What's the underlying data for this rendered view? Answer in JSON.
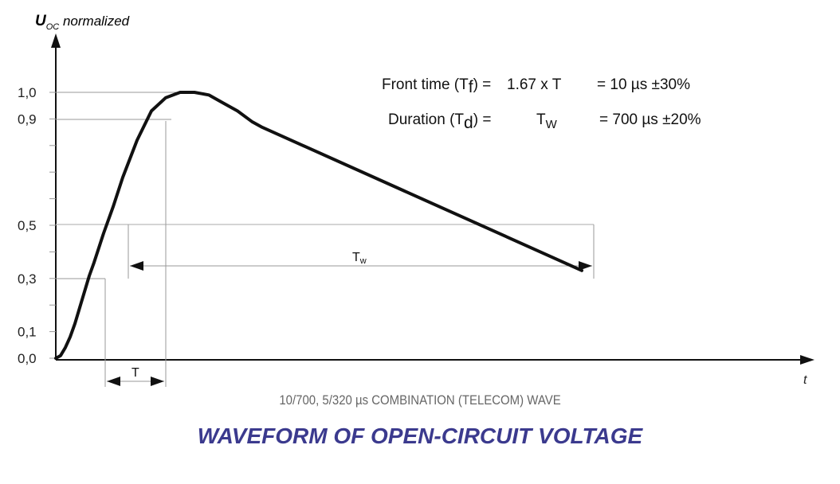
{
  "chart_data": {
    "type": "line",
    "title": "WAVEFORM OF OPEN-CIRCUIT VOLTAGE",
    "subtitle": "10/700, 5/320 µs COMBINATION (TELECOM) WAVE",
    "ylabel_main": "U",
    "ylabel_sub": "OC",
    "ylabel_rest": " normalized",
    "xlabel": "t",
    "y_ticks": [
      "0,0",
      "0,1",
      "0,3",
      "0,5",
      "0,9",
      "1,0"
    ],
    "y_tick_values": [
      0.0,
      0.1,
      0.3,
      0.5,
      0.9,
      1.0
    ],
    "ylim": [
      0,
      1.0
    ],
    "grid": false,
    "series": [
      {
        "x": [
          0,
          2,
          4,
          6,
          8,
          10,
          12,
          14,
          16,
          20,
          24,
          28,
          34,
          40,
          46,
          52,
          58,
          64,
          70,
          76,
          82,
          86
        ],
        "values": [
          0.0,
          0.01,
          0.04,
          0.08,
          0.13,
          0.19,
          0.25,
          0.31,
          0.36,
          0.47,
          0.57,
          0.68,
          0.82,
          0.93,
          0.98,
          1.0,
          1.0,
          0.99,
          0.96,
          0.93,
          0.89,
          0.87
        ]
      }
    ],
    "tail_end": {
      "x": 220,
      "y": 0.33
    },
    "annotations": {
      "front_label": "Front time (T",
      "front_sub": "f",
      "front_rest": ") =",
      "front_eq": "1.67 x T",
      "front_value": "= 10 µs ±30%",
      "duration_label": "Duration (T",
      "duration_sub": "d",
      "duration_rest": ") =",
      "duration_eq_main": "T",
      "duration_eq_sub": "W",
      "duration_value": "= 700 µs ±20%",
      "tw_main": "T",
      "tw_sub": "w",
      "t_label": "T"
    }
  }
}
